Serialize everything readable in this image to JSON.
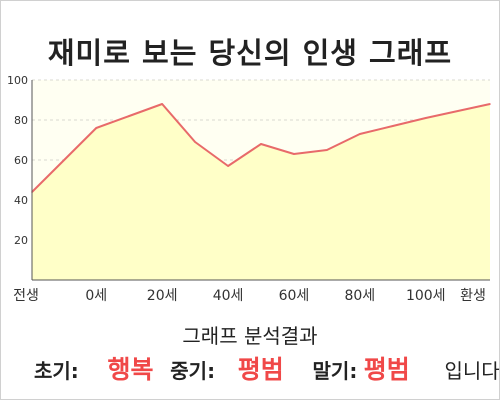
{
  "title": "재미로 보는 당신의 인생 그래프",
  "chart_data": {
    "type": "area",
    "categories": [
      "전생",
      "0세",
      "20세",
      "40세",
      "60세",
      "80세",
      "100세",
      "환생"
    ],
    "x": [
      -19.5,
      0,
      10,
      20,
      30,
      40,
      50,
      60,
      70,
      80,
      90,
      100,
      119.5
    ],
    "values": [
      44,
      76,
      82,
      88,
      69,
      57,
      68,
      63,
      65,
      73,
      77,
      81,
      88
    ],
    "ylim": [
      0,
      100
    ],
    "yticks": [
      20,
      40,
      60,
      80,
      100
    ],
    "xlim": [
      -19.5,
      119.5
    ],
    "line_color": "#e86a6a",
    "fill_color": "#ffffc8",
    "plot_background": "#fffff2",
    "grid": "horizontal dashed"
  },
  "result": {
    "heading": "그래프 분석결과",
    "early_label": "초기:",
    "early_value": "행복",
    "middle_label": "중기:",
    "middle_value": "평범",
    "late_label": "말기:",
    "late_value": "평범",
    "ending": "입니다",
    "highlight_color": "#f04848"
  }
}
